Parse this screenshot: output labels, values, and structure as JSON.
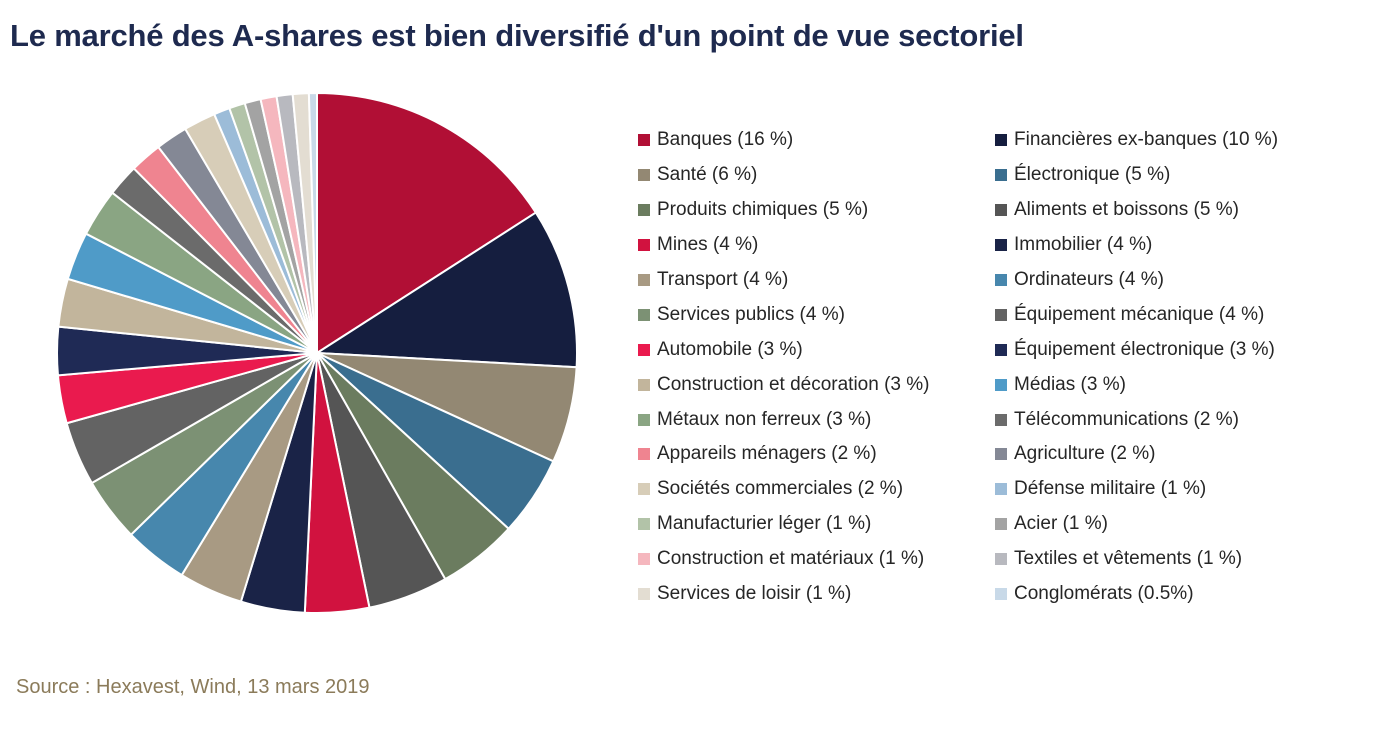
{
  "title": "Le marché des A-shares est bien diversifié d'un point de vue sectoriel",
  "source": "Source : Hexavest, Wind, 13 mars 2019",
  "chart_data": {
    "type": "pie",
    "title": "Le marché des A-shares est bien diversifié d'un point de vue sectoriel",
    "legend_placement": "right",
    "slices": [
      {
        "label": "Banques (16 %)",
        "value": 16,
        "color": "#b10f35"
      },
      {
        "label": "Financières ex-banques (10 %)",
        "value": 10,
        "color": "#151e3f"
      },
      {
        "label": "Santé (6 %)",
        "value": 6,
        "color": "#938873"
      },
      {
        "label": "Électronique (5 %)",
        "value": 5,
        "color": "#3a6e8f"
      },
      {
        "label": "Produits chimiques (5 %)",
        "value": 5,
        "color": "#6b7c5f"
      },
      {
        "label": "Aliments et boissons (5 %)",
        "value": 5,
        "color": "#555555"
      },
      {
        "label": "Mines (4 %)",
        "value": 4,
        "color": "#d1123f"
      },
      {
        "label": "Immobilier (4 %)",
        "value": 4,
        "color": "#1a2347"
      },
      {
        "label": "Transport (4 %)",
        "value": 4,
        "color": "#a89a83"
      },
      {
        "label": "Ordinateurs (4 %)",
        "value": 4,
        "color": "#4787ad"
      },
      {
        "label": "Services publics (4 %)",
        "value": 4,
        "color": "#7c9174"
      },
      {
        "label": "Équipement mécanique (4 %)",
        "value": 4,
        "color": "#636363"
      },
      {
        "label": "Automobile (3 %)",
        "value": 3,
        "color": "#ea1a4e"
      },
      {
        "label": "Équipement électronique (3 %)",
        "value": 3,
        "color": "#1f2a55"
      },
      {
        "label": "Construction et décoration (3 %)",
        "value": 3,
        "color": "#c2b59c"
      },
      {
        "label": "Médias (3 %)",
        "value": 3,
        "color": "#4f9bc8"
      },
      {
        "label": "Métaux non ferreux (3 %)",
        "value": 3,
        "color": "#8aa583"
      },
      {
        "label": "Télécommunications (2 %)",
        "value": 2,
        "color": "#6b6b6b"
      },
      {
        "label": "Appareils ménagers (2 %)",
        "value": 2,
        "color": "#ef8490"
      },
      {
        "label": "Agriculture (2 %)",
        "value": 2,
        "color": "#848895"
      },
      {
        "label": "Sociétés commerciales (2 %)",
        "value": 2,
        "color": "#d7cdb8"
      },
      {
        "label": "Défense militaire (1 %)",
        "value": 1,
        "color": "#9cbcd8"
      },
      {
        "label": "Manufacturier léger (1 %)",
        "value": 1,
        "color": "#b2c3a8"
      },
      {
        "label": "Acier (1 %)",
        "value": 1,
        "color": "#a3a3a3"
      },
      {
        "label": "Construction et matériaux (1 %)",
        "value": 1,
        "color": "#f5b7be"
      },
      {
        "label": "Textiles et vêtements (1 %)",
        "value": 1,
        "color": "#b8b9bf"
      },
      {
        "label": "Services de loisir (1 %)",
        "value": 1,
        "color": "#e3ddd2"
      },
      {
        "label": "Conglomérats (0.5%)",
        "value": 0.5,
        "color": "#c8d9e8"
      }
    ]
  }
}
